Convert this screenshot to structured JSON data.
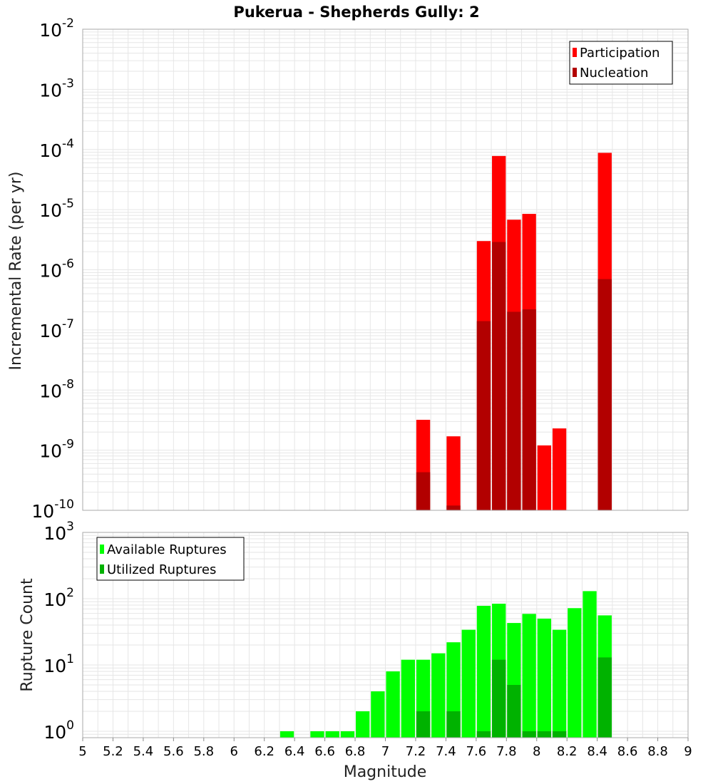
{
  "title": "Pukerua - Shepherds Gully: 2",
  "colors": {
    "participation": "#ff0000",
    "nucleation": "#b20000",
    "available": "#00ff00",
    "utilized": "#00b200",
    "grid": "#e6e6e6",
    "frame": "#aaaaaa"
  },
  "chart_data": [
    {
      "type": "bar",
      "name": "rate-panel",
      "title": "Pukerua - Shepherds Gully: 2",
      "xlabel": "",
      "ylabel": "Incremental Rate (per yr)",
      "xlim": [
        5,
        9
      ],
      "ylim": [
        1e-10,
        0.01
      ],
      "yscale": "log",
      "ytick_exponents": [
        "-10",
        "-9",
        "-8",
        "-7",
        "-6",
        "-5",
        "-4",
        "-3",
        "-2"
      ],
      "legend": {
        "position": "top-right",
        "entries": [
          "Participation",
          "Nucleation"
        ]
      },
      "series": [
        {
          "name": "Participation",
          "x": [
            7.25,
            7.45,
            7.65,
            7.75,
            7.85,
            7.95,
            8.05,
            8.15,
            8.45
          ],
          "values": [
            3.2e-09,
            1.7e-09,
            3e-06,
            7.8e-05,
            6.8e-06,
            8.5e-06,
            1.2e-09,
            2.3e-09,
            8.8e-05
          ]
        },
        {
          "name": "Nucleation",
          "x": [
            7.25,
            7.45,
            7.65,
            7.75,
            7.85,
            7.95,
            8.45
          ],
          "values": [
            4.3e-10,
            1.2e-10,
            1.4e-07,
            2.9e-06,
            2e-07,
            2.2e-07,
            7e-07
          ]
        }
      ]
    },
    {
      "type": "bar",
      "name": "count-panel",
      "xlabel": "Magnitude",
      "ylabel": "Rupture Count",
      "xlim": [
        5,
        9
      ],
      "ylim": [
        0.8,
        1000
      ],
      "yscale": "log",
      "ytick_exponents": [
        "0",
        "1",
        "2",
        "3"
      ],
      "xticks": [
        "5",
        "5.2",
        "5.4",
        "5.6",
        "5.8",
        "6",
        "6.2",
        "6.4",
        "6.6",
        "6.8",
        "7",
        "7.2",
        "7.4",
        "7.6",
        "7.8",
        "8",
        "8.2",
        "8.4",
        "8.6",
        "8.8",
        "9"
      ],
      "legend": {
        "position": "top-left",
        "entries": [
          "Available Ruptures",
          "Utilized Ruptures"
        ]
      },
      "series": [
        {
          "name": "Available Ruptures",
          "x": [
            6.35,
            6.55,
            6.65,
            6.75,
            6.85,
            6.95,
            7.05,
            7.15,
            7.25,
            7.35,
            7.45,
            7.55,
            7.65,
            7.75,
            7.85,
            7.95,
            8.05,
            8.15,
            8.25,
            8.35,
            8.45
          ],
          "values": [
            1,
            1,
            1,
            1,
            2,
            4,
            8,
            12,
            12,
            15,
            22,
            34,
            78,
            84,
            43,
            59,
            50,
            34,
            72,
            130,
            56
          ]
        },
        {
          "name": "Utilized Ruptures",
          "x": [
            7.25,
            7.45,
            7.65,
            7.75,
            7.85,
            7.95,
            8.05,
            8.15,
            8.45
          ],
          "values": [
            2,
            2,
            1,
            12,
            5,
            1,
            1,
            1,
            13
          ]
        }
      ]
    }
  ]
}
